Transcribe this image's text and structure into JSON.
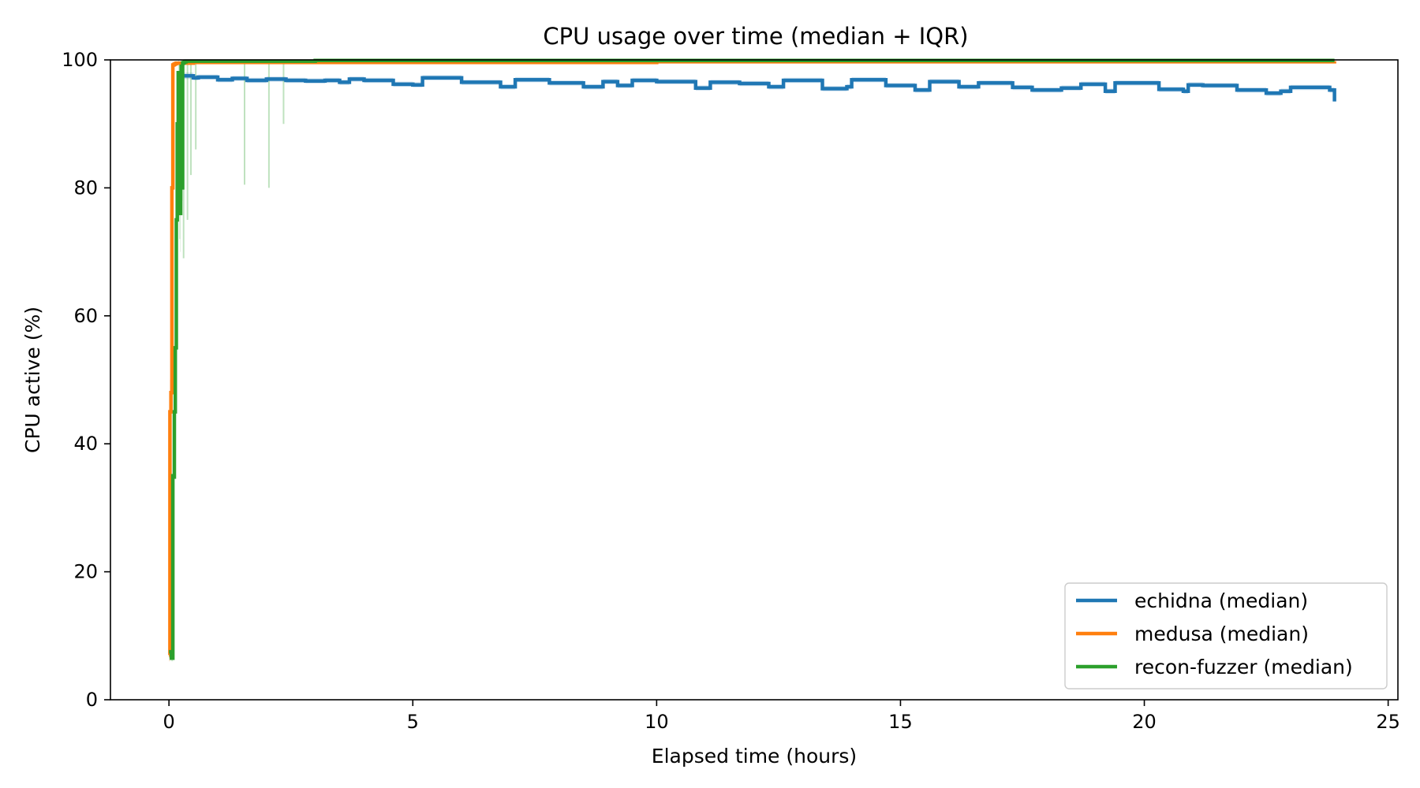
{
  "chart_data": {
    "type": "line",
    "title": "CPU usage over time (median + IQR)",
    "xlabel": "Elapsed time (hours)",
    "ylabel": "CPU active (%)",
    "xlim": [
      -1.2,
      25.2
    ],
    "ylim": [
      0,
      100
    ],
    "xticks": [
      0,
      5,
      10,
      15,
      20,
      25
    ],
    "yticks": [
      0,
      20,
      40,
      60,
      80,
      100
    ],
    "xtick_labels": [
      "0",
      "5",
      "10",
      "15",
      "20",
      "25"
    ],
    "ytick_labels": [
      "0",
      "20",
      "40",
      "60",
      "80",
      "100"
    ],
    "grid": false,
    "legend_position": "bottom-right",
    "series": [
      {
        "name": "echidna (median)",
        "color": "#1f77b4",
        "x": [
          0.2,
          0.5,
          0.6,
          1.0,
          1.3,
          1.6,
          2.0,
          2.4,
          2.8,
          3.2,
          3.5,
          3.7,
          4.0,
          4.6,
          5.0,
          5.2,
          6.0,
          6.8,
          7.1,
          7.8,
          8.5,
          8.9,
          9.2,
          9.5,
          10.0,
          10.8,
          11.1,
          11.7,
          12.3,
          12.6,
          13.4,
          13.9,
          14.0,
          14.7,
          15.3,
          15.6,
          16.2,
          16.6,
          17.3,
          17.7,
          18.3,
          18.7,
          19.2,
          19.4,
          20.3,
          20.8,
          20.9,
          21.2,
          21.9,
          22.5,
          22.8,
          23.0,
          23.8,
          23.9
        ],
        "y": [
          97.5,
          97.2,
          97.3,
          96.9,
          97.1,
          96.8,
          97.0,
          96.8,
          96.7,
          96.8,
          96.5,
          97.0,
          96.8,
          96.2,
          96.1,
          97.2,
          96.5,
          95.8,
          96.9,
          96.4,
          95.8,
          96.6,
          96.0,
          96.8,
          96.6,
          95.6,
          96.5,
          96.3,
          95.8,
          96.8,
          95.5,
          95.8,
          96.9,
          96.0,
          95.3,
          96.6,
          95.8,
          96.4,
          95.7,
          95.3,
          95.6,
          96.2,
          95.1,
          96.4,
          95.4,
          95.1,
          96.1,
          96.0,
          95.3,
          94.8,
          95.1,
          95.7,
          95.3,
          93.5
        ],
        "iqr_low": [
          97.0,
          96.8,
          96.9,
          96.5,
          96.7,
          96.4,
          96.6,
          96.4,
          96.3,
          96.4,
          96.1,
          96.6,
          96.4,
          95.8,
          95.7,
          96.8,
          96.1,
          95.4,
          96.5,
          96.0,
          95.4,
          96.2,
          95.6,
          96.4,
          96.2,
          95.2,
          96.1,
          95.9,
          95.4,
          96.4,
          95.1,
          95.4,
          96.5,
          95.6,
          94.9,
          96.2,
          95.4,
          96.0,
          95.3,
          94.9,
          95.2,
          95.8,
          94.7,
          96.0,
          95.0,
          94.7,
          95.7,
          95.6,
          94.9,
          94.4,
          94.7,
          95.3,
          94.9,
          93.1
        ],
        "iqr_high": [
          98.0,
          97.6,
          97.7,
          97.3,
          97.5,
          97.2,
          97.4,
          97.2,
          97.1,
          97.2,
          96.9,
          97.4,
          97.2,
          96.6,
          96.5,
          97.6,
          96.9,
          96.2,
          97.3,
          96.8,
          96.2,
          97.0,
          96.4,
          97.2,
          97.0,
          96.0,
          96.9,
          96.7,
          96.2,
          97.2,
          95.9,
          96.2,
          97.3,
          96.4,
          95.7,
          97.0,
          96.2,
          96.8,
          96.1,
          95.7,
          96.0,
          96.6,
          95.5,
          96.8,
          95.8,
          95.5,
          96.5,
          96.4,
          95.7,
          95.2,
          95.5,
          96.1,
          95.7,
          93.9
        ]
      },
      {
        "name": "medusa (median)",
        "color": "#ff7f0e",
        "x": [
          0.0,
          0.02,
          0.04,
          0.06,
          0.08,
          0.1,
          0.12,
          0.15,
          0.2,
          0.5,
          1.0,
          3.0,
          6.0,
          10.0,
          14.0,
          18.0,
          22.0,
          23.9
        ],
        "y": [
          7.0,
          45.0,
          48.0,
          80.0,
          99.2,
          99.3,
          99.4,
          99.5,
          99.5,
          99.6,
          99.6,
          99.6,
          99.6,
          99.7,
          99.7,
          99.7,
          99.7,
          99.8
        ],
        "iqr_low": [
          6.0,
          40.0,
          45.0,
          75.0,
          99.0,
          99.1,
          99.2,
          99.3,
          99.3,
          99.4,
          99.4,
          99.4,
          99.4,
          99.5,
          99.5,
          99.5,
          99.5,
          99.6
        ],
        "iqr_high": [
          8.0,
          50.0,
          52.0,
          85.0,
          99.4,
          99.5,
          99.6,
          99.7,
          99.7,
          99.8,
          99.8,
          99.8,
          99.8,
          99.9,
          99.9,
          99.9,
          99.9,
          100.0
        ]
      },
      {
        "name": "recon-fuzzer (median)",
        "color": "#2ca02c",
        "x": [
          0.0,
          0.05,
          0.08,
          0.1,
          0.11,
          0.13,
          0.15,
          0.17,
          0.19,
          0.21,
          0.23,
          0.24,
          0.25,
          0.27,
          0.28,
          0.3,
          0.32,
          0.35,
          0.5,
          1.0,
          3.0,
          6.0,
          10.0,
          14.0,
          18.0,
          22.0,
          23.9
        ],
        "y": [
          7.5,
          6.5,
          35.0,
          34.8,
          45.0,
          55.0,
          75.0,
          90.0,
          98.0,
          79.0,
          76.0,
          95.0,
          99.0,
          80.0,
          99.5,
          99.6,
          99.7,
          99.8,
          99.8,
          99.8,
          99.9,
          99.9,
          99.9,
          99.9,
          99.9,
          99.9,
          99.9
        ],
        "iqr_low": [
          6.5,
          6.0,
          33.0,
          33.0,
          42.0,
          52.0,
          70.0,
          85.0,
          95.0,
          72.0,
          70.0,
          90.0,
          96.0,
          78.0,
          99.3,
          99.4,
          99.5,
          99.6,
          99.6,
          99.6,
          99.7,
          99.7,
          99.7,
          99.7,
          99.7,
          99.7,
          99.7
        ],
        "iqr_high": [
          8.5,
          7.0,
          37.0,
          37.0,
          48.0,
          60.0,
          80.0,
          95.0,
          100.0,
          86.0,
          82.0,
          100.0,
          100.0,
          88.0,
          100.0,
          100.0,
          100.0,
          100.0,
          100.0,
          100.0,
          100.0,
          100.0,
          100.0,
          100.0,
          100.0,
          100.0,
          100.0
        ]
      }
    ],
    "iqr_spikes": [
      {
        "series": "recon-fuzzer (median)",
        "x": 0.3,
        "low": 69.0
      },
      {
        "series": "recon-fuzzer (median)",
        "x": 0.38,
        "low": 75.0
      },
      {
        "series": "recon-fuzzer (median)",
        "x": 0.45,
        "low": 82.0
      },
      {
        "series": "recon-fuzzer (median)",
        "x": 0.55,
        "low": 86.0
      },
      {
        "series": "recon-fuzzer (median)",
        "x": 1.55,
        "low": 80.5
      },
      {
        "series": "recon-fuzzer (median)",
        "x": 2.05,
        "low": 80.0
      },
      {
        "series": "recon-fuzzer (median)",
        "x": 2.35,
        "low": 90.0
      }
    ]
  }
}
